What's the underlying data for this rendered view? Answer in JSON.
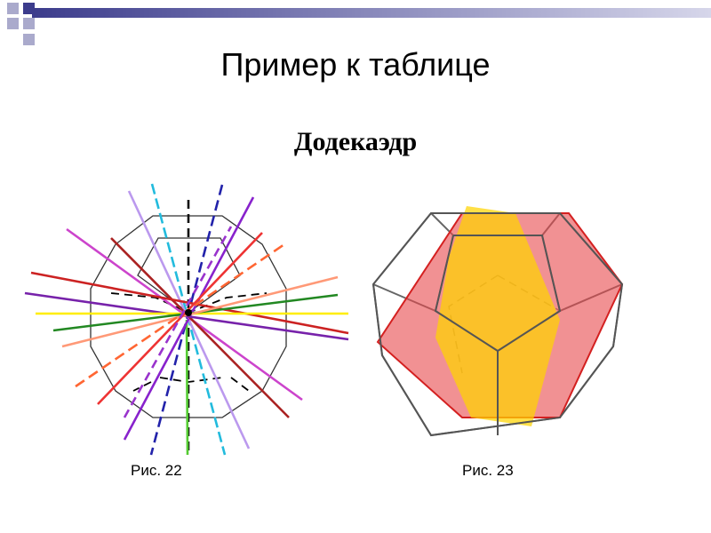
{
  "slide": {
    "title": "Пример к таблице",
    "subtitle": "Додекаэдр",
    "captions": [
      "Рис. 22",
      "Рис. 23"
    ]
  },
  "colors": {
    "header_bar": "#4a4aa0",
    "square_dark": "#3c3c8c",
    "square_light": "#aaaacc",
    "face_red": "#e8474b",
    "face_yellow": "#ffd400"
  },
  "figures": [
    {
      "name": "dodecahedron-axes",
      "caption_index": 0
    },
    {
      "name": "dodecahedron-planes",
      "caption_index": 1
    }
  ]
}
